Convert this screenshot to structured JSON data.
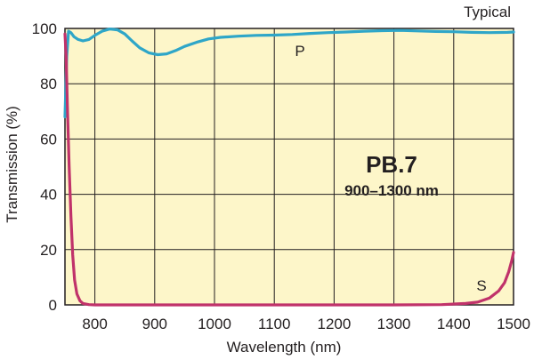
{
  "chart_data": {
    "type": "line",
    "corner_label": "Typical",
    "xlabel": "Wavelength (nm)",
    "ylabel": "Transmission (%)",
    "xlim": [
      750,
      1500
    ],
    "ylim": [
      0,
      100
    ],
    "xticks": [
      800,
      900,
      1000,
      1100,
      1200,
      1300,
      1400,
      1500
    ],
    "yticks": [
      0,
      20,
      40,
      60,
      80,
      100
    ],
    "grid": true,
    "plot_background": "#fdf6c9",
    "annotation_title": "PB.7",
    "annotation_subtitle": "900–1300 nm",
    "series": [
      {
        "name": "P",
        "color": "#2ea6c8",
        "x": [
          750,
          753,
          756,
          760,
          765,
          772,
          780,
          790,
          800,
          812,
          825,
          838,
          850,
          862,
          875,
          890,
          905,
          920,
          935,
          950,
          970,
          990,
          1010,
          1040,
          1070,
          1100,
          1130,
          1160,
          1190,
          1220,
          1250,
          1280,
          1310,
          1340,
          1370,
          1400,
          1430,
          1460,
          1490,
          1500
        ],
        "y": [
          68,
          90,
          99,
          98.5,
          97,
          96,
          95.5,
          96,
          97.5,
          99,
          99.8,
          99.5,
          98,
          95.5,
          93,
          91.2,
          90.5,
          90.8,
          92,
          93.5,
          95,
          96.2,
          96.8,
          97.2,
          97.5,
          97.6,
          97.8,
          98.2,
          98.5,
          98.7,
          99,
          99.2,
          99.3,
          99.1,
          98.9,
          98.8,
          98.6,
          98.5,
          98.6,
          98.7
        ]
      },
      {
        "name": "S",
        "color": "#c0326a",
        "x": [
          750,
          752,
          754,
          757,
          760,
          763,
          766,
          770,
          775,
          780,
          790,
          800,
          850,
          900,
          1000,
          1100,
          1200,
          1300,
          1380,
          1420,
          1440,
          1460,
          1475,
          1485,
          1492,
          1497,
          1500
        ],
        "y": [
          98,
          90,
          72,
          50,
          32,
          18,
          9,
          4,
          1.5,
          0.5,
          0.1,
          0,
          0,
          0,
          0,
          0,
          0,
          0,
          0.1,
          0.5,
          1,
          2.5,
          5,
          8,
          12,
          16,
          19
        ]
      }
    ]
  }
}
